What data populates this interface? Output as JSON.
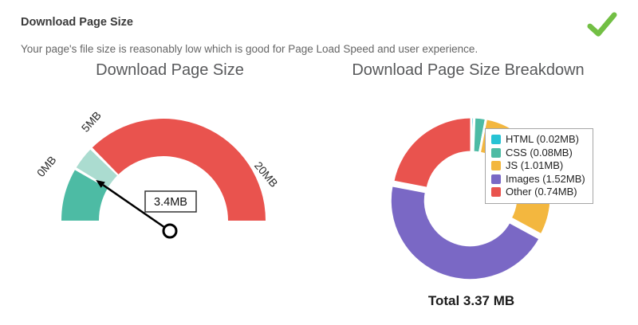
{
  "header": {
    "title": "Download Page Size",
    "description": "Your page's file size is reasonably low which is good for Page Load Speed and user experience.",
    "status_icon": "check-icon",
    "status_color": "#72bf44"
  },
  "chart_data": [
    {
      "type": "gauge",
      "title": "Download Page Size",
      "unit": "MB",
      "min": 0,
      "max": 20,
      "value": 3.4,
      "value_label": "3.4MB",
      "ticks": [
        0,
        5,
        20
      ],
      "tick_labels": [
        "0MB",
        "5MB",
        "20MB"
      ],
      "segments": [
        {
          "from": 0,
          "to": 3.4,
          "color": "#4dbba4"
        },
        {
          "from": 3.4,
          "to": 5,
          "color": "#abdcd0"
        },
        {
          "from": 5,
          "to": 20,
          "color": "#e9534e"
        }
      ]
    },
    {
      "type": "pie",
      "title": "Download Page Size Breakdown",
      "total_label": "Total 3.37 MB",
      "legend_position": "top-right",
      "slices": [
        {
          "name": "HTML",
          "label": "HTML (0.02MB)",
          "value": 0.02,
          "color": "#27c3d4",
          "pulled": false
        },
        {
          "name": "CSS",
          "label": "CSS (0.08MB)",
          "value": 0.08,
          "color": "#4dbba4",
          "pulled": false
        },
        {
          "name": "JS",
          "label": "JS (1.01MB)",
          "value": 1.01,
          "color": "#f3b73f",
          "pulled": false
        },
        {
          "name": "Images",
          "label": "Images (1.52MB)",
          "value": 1.52,
          "color": "#7a68c5",
          "pulled": true
        },
        {
          "name": "Other",
          "label": "Other (0.74MB)",
          "value": 0.74,
          "color": "#e9534e",
          "pulled": false
        }
      ]
    }
  ]
}
